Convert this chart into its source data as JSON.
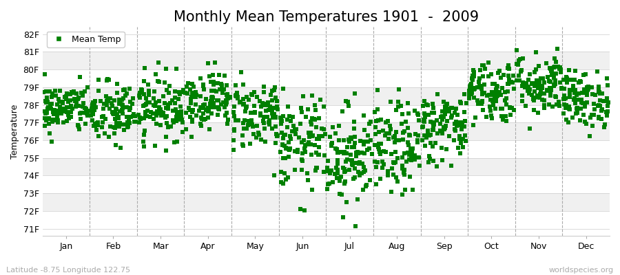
{
  "title": "Monthly Mean Temperatures 1901  -  2009",
  "ylabel": "Temperature",
  "yticks": [
    "71F",
    "72F",
    "73F",
    "74F",
    "75F",
    "76F",
    "77F",
    "78F",
    "79F",
    "80F",
    "81F",
    "82F"
  ],
  "yvalues": [
    71,
    72,
    73,
    74,
    75,
    76,
    77,
    78,
    79,
    80,
    81,
    82
  ],
  "ylim": [
    70.6,
    82.4
  ],
  "months": [
    "Jan",
    "Feb",
    "Mar",
    "Apr",
    "May",
    "Jun",
    "Jul",
    "Aug",
    "Sep",
    "Oct",
    "Nov",
    "Dec"
  ],
  "month_centers": [
    0.5,
    1.5,
    2.5,
    3.5,
    4.5,
    5.5,
    6.5,
    7.5,
    8.5,
    9.5,
    10.5,
    11.5
  ],
  "marker_color": "#008000",
  "marker_size": 4,
  "background_color": "#ffffff",
  "band_colors": [
    "#ffffff",
    "#ebebeb",
    "#ffffff",
    "#ebebeb",
    "#ffffff",
    "#ebebeb",
    "#ffffff",
    "#ebebeb",
    "#ffffff",
    "#ebebeb",
    "#ffffff"
  ],
  "grid_color": "#aaaaaa",
  "title_fontsize": 15,
  "axis_fontsize": 9,
  "tick_fontsize": 9,
  "bottom_left_text": "Latitude -8.75 Longitude 122.75",
  "bottom_right_text": "worldspecies.org",
  "legend_label": "Mean Temp",
  "n_years": 109,
  "seed": 42,
  "monthly_means": [
    77.8,
    77.5,
    77.9,
    78.3,
    77.5,
    75.8,
    75.2,
    75.5,
    76.8,
    78.8,
    79.2,
    78.3
  ],
  "monthly_stds": [
    0.7,
    0.9,
    0.9,
    0.8,
    1.0,
    1.3,
    1.4,
    1.3,
    1.0,
    0.9,
    0.9,
    0.8
  ]
}
